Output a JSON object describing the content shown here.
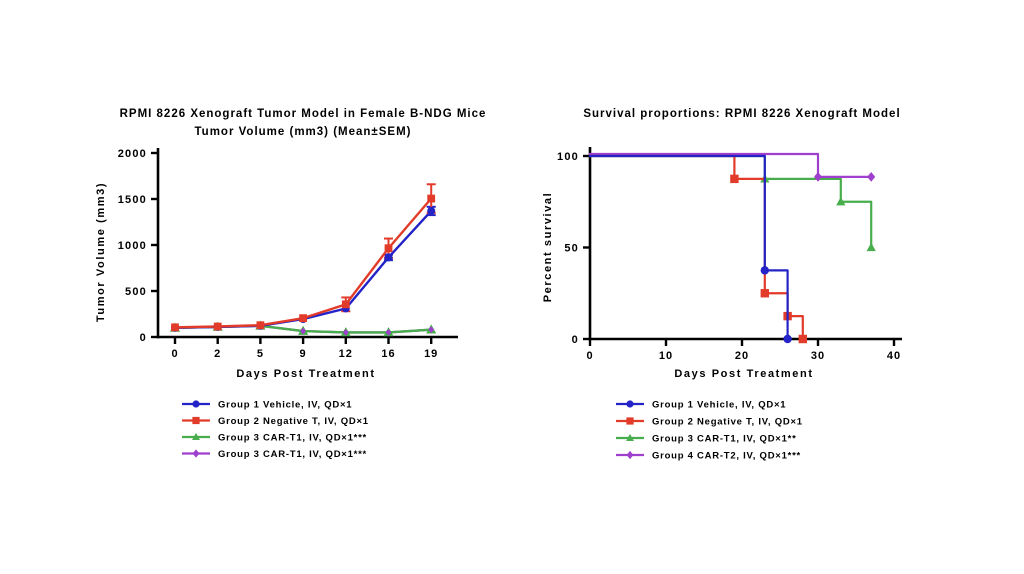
{
  "figure": {
    "background": "#ffffff",
    "text_color": "#000000",
    "axis_color": "#000000"
  },
  "chart_data": [
    {
      "id": "tumor-volume-chart",
      "type": "line",
      "title_line1": "RPMI 8226 Xenograft Tumor Model in Female B-NDG Mice",
      "title_line2": "Tumor Volume (mm3) (Mean±SEM)",
      "xlabel": "Days Post Treatment",
      "ylabel": "Tumor Volume (mm3)",
      "categories": [
        0,
        2,
        5,
        9,
        12,
        16,
        19
      ],
      "ylim": [
        0,
        2000
      ],
      "yticks": [
        0,
        500,
        1000,
        1500,
        2000
      ],
      "grid": false,
      "legend_position": "bottom-left",
      "series": [
        {
          "name": "Group 1 Vehicle, IV, QD×1",
          "marker": "circle",
          "color": "#2323c8",
          "values": [
            100,
            110,
            122,
            195,
            310,
            865,
            1370
          ],
          "sem": [
            0,
            0,
            0,
            0,
            0,
            30,
            45
          ]
        },
        {
          "name": "Group 2 Negative T, IV, QD×1",
          "marker": "square",
          "color": "#e23b2a",
          "values": [
            105,
            114,
            128,
            205,
            355,
            965,
            1505
          ],
          "sem": [
            0,
            0,
            0,
            0,
            75,
            105,
            155
          ]
        },
        {
          "name": "Group 3 CAR-T1, IV, QD×1***",
          "marker": "triangle",
          "color": "#48ad4c",
          "values": [
            100,
            110,
            122,
            65,
            50,
            50,
            80
          ],
          "sem": [
            0,
            0,
            0,
            0,
            0,
            0,
            0
          ]
        },
        {
          "name": "Group 3 CAR-T1, IV, QD×1***",
          "marker": "diamond",
          "color": "#9e3fcd",
          "values": [
            100,
            110,
            122,
            65,
            50,
            50,
            80
          ],
          "sem": [
            0,
            0,
            0,
            0,
            0,
            0,
            0
          ]
        }
      ]
    },
    {
      "id": "survival-chart",
      "type": "line",
      "subtype": "survival-step",
      "title": "Survival proportions: RPMI 8226 Xenograft Model",
      "xlabel": "Days Post Treatment",
      "ylabel": "Percent survival",
      "xlim": [
        0,
        40
      ],
      "xticks": [
        0,
        10,
        20,
        30,
        40
      ],
      "ylim": [
        0,
        100
      ],
      "yticks": [
        0,
        50,
        100
      ],
      "grid": false,
      "legend_position": "bottom-left",
      "series": [
        {
          "name": "Group 1 Vehicle, IV, QD×1",
          "marker": "circle",
          "color": "#2323c8",
          "steps": [
            [
              0,
              100
            ],
            [
              23,
              100
            ],
            [
              23,
              37.5
            ],
            [
              26,
              37.5
            ],
            [
              26,
              0
            ]
          ],
          "marker_points": [
            [
              23,
              37.5
            ],
            [
              26,
              0
            ]
          ]
        },
        {
          "name": "Group 2 Negative T, IV, QD×1",
          "marker": "square",
          "color": "#e23b2a",
          "steps": [
            [
              0,
              100
            ],
            [
              19,
              100
            ],
            [
              19,
              87.5
            ],
            [
              23,
              87.5
            ],
            [
              23,
              25
            ],
            [
              26,
              25
            ],
            [
              26,
              12.5
            ],
            [
              28,
              12.5
            ],
            [
              28,
              0
            ]
          ],
          "marker_points": [
            [
              19,
              87.5
            ],
            [
              23,
              25
            ],
            [
              26,
              12.5
            ],
            [
              28,
              0
            ]
          ]
        },
        {
          "name": "Group 3 CAR-T1, IV, QD×1**",
          "marker": "triangle",
          "color": "#48ad4c",
          "steps": [
            [
              0,
              100
            ],
            [
              23,
              100
            ],
            [
              23,
              87.5
            ],
            [
              33,
              87.5
            ],
            [
              33,
              75
            ],
            [
              37,
              75
            ],
            [
              37,
              50
            ]
          ],
          "marker_points": [
            [
              23,
              87.5
            ],
            [
              33,
              75
            ],
            [
              37,
              50
            ]
          ]
        },
        {
          "name": "Group 4 CAR-T2, IV, QD×1***",
          "marker": "diamond",
          "color": "#9e3fcd",
          "steps": [
            [
              0,
              100
            ],
            [
              30,
              100
            ],
            [
              30,
              87.5
            ],
            [
              37,
              87.5
            ]
          ],
          "marker_points": [
            [
              30,
              87.5
            ],
            [
              37,
              87.5
            ]
          ]
        }
      ]
    }
  ]
}
